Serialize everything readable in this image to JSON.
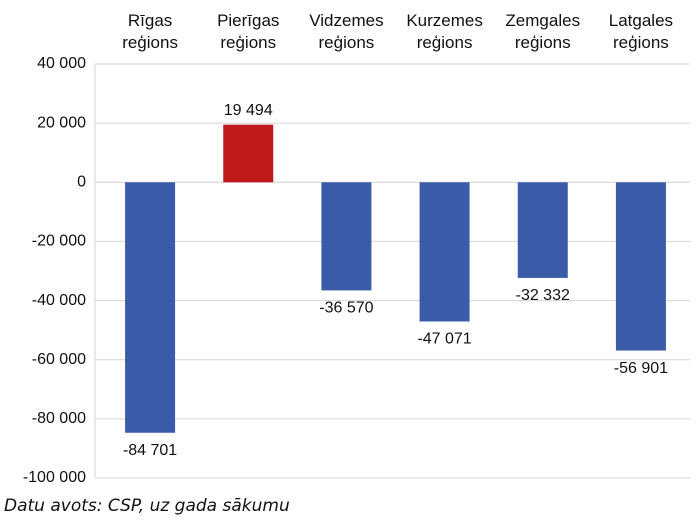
{
  "chart_data": {
    "type": "bar",
    "categories": [
      "Rīgas reģions",
      "Pierīgas reģions",
      "Vidzemes reģions",
      "Kurzemes reģions",
      "Zemgales reģions",
      "Latgales reģions"
    ],
    "values": [
      -84701,
      19494,
      -36570,
      -47071,
      -32332,
      -56901
    ],
    "value_labels": [
      "-84 701",
      "19 494",
      "-36 570",
      "-47 071",
      "-32 332",
      "-56 901"
    ],
    "colors": [
      "#3a5ba8",
      "#bf1a1c",
      "#3a5ba8",
      "#3a5ba8",
      "#3a5ba8",
      "#3a5ba8"
    ],
    "ylim": [
      -100000,
      40000
    ],
    "yticks": [
      {
        "value": -100000,
        "label": "-100 000"
      },
      {
        "value": -80000,
        "label": "-80 000"
      },
      {
        "value": -60000,
        "label": "-60 000"
      },
      {
        "value": -40000,
        "label": "-40 000"
      },
      {
        "value": -20000,
        "label": "-20 000"
      },
      0,
      {
        "value": 20000,
        "label": "20 000"
      },
      {
        "value": 40000,
        "label": "40 000"
      }
    ],
    "grid": true,
    "source": "Datu avots: CSP, uz gada sākumu"
  }
}
